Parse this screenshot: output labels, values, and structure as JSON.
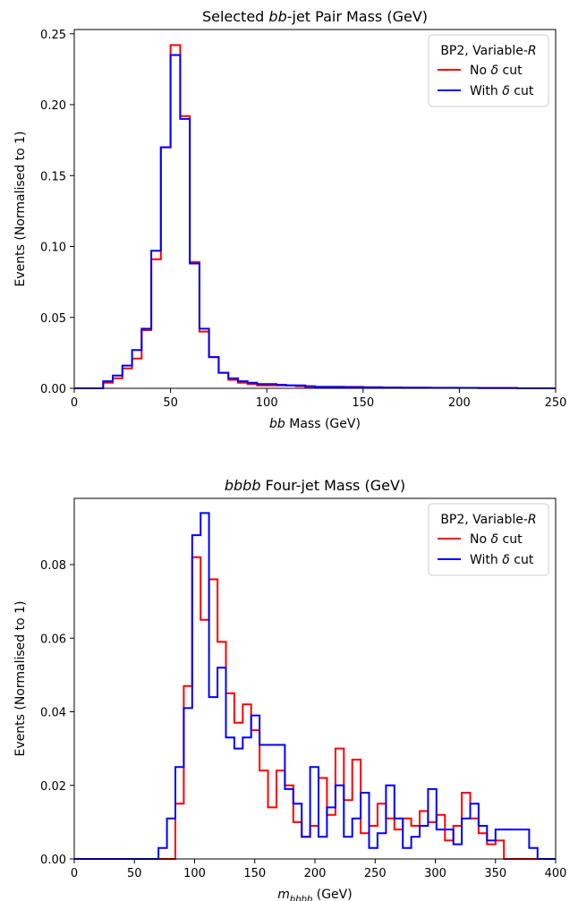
{
  "chart_data": [
    {
      "type": "line",
      "title_parts": [
        "Selected ",
        "bb",
        "-jet Pair Mass (GeV)"
      ],
      "xlabel_parts": [
        "bb",
        " Mass (GeV)"
      ],
      "ylabel": "Events (Normalised to 1)",
      "xlim": [
        0,
        250
      ],
      "ylim": [
        0,
        0.253
      ],
      "xticks": [
        0,
        50,
        100,
        150,
        200,
        250
      ],
      "yticks": [
        0.0,
        0.05,
        0.1,
        0.15,
        0.2,
        0.25
      ],
      "ytick_labels": [
        "0.00",
        "0.05",
        "0.10",
        "0.15",
        "0.20",
        "0.25"
      ],
      "grid": false,
      "legend": {
        "placement": "top-right",
        "title_parts": [
          "BP2, Variable-",
          "R"
        ],
        "entries": [
          {
            "parts": [
              "No ",
              "δ",
              " cut"
            ],
            "color": "#ff0000"
          },
          {
            "parts": [
              "With ",
              "δ",
              " cut"
            ],
            "color": "#0000ff"
          }
        ]
      },
      "bin_edges": [
        0,
        5,
        10,
        15,
        20,
        25,
        30,
        35,
        40,
        45,
        50,
        55,
        60,
        65,
        70,
        75,
        80,
        85,
        90,
        95,
        100,
        105,
        110,
        115,
        120,
        125,
        130,
        135,
        140,
        145,
        150,
        155,
        160,
        165,
        170,
        175,
        180,
        185,
        190,
        195,
        200,
        205,
        210,
        215,
        220,
        225,
        230,
        235,
        240,
        245,
        250
      ],
      "series": [
        {
          "name": "No δ cut",
          "color": "#ff0000",
          "values": [
            0,
            0,
            0,
            0.004,
            0.007,
            0.014,
            0.021,
            0.041,
            0.091,
            0.17,
            0.242,
            0.192,
            0.089,
            0.04,
            0.022,
            0.011,
            0.006,
            0.004,
            0.003,
            0.002,
            0.002,
            0.002,
            0.002,
            0.0015,
            0.001,
            0.001,
            0.001,
            0.001,
            0.001,
            0.001,
            0.0008,
            0.0008,
            0.0006,
            0.0006,
            0.0005,
            0.0005,
            0.0005,
            0.0004,
            0.0004,
            0.0004,
            0.0003,
            0.0003,
            0.0003,
            0.0003,
            0.0003,
            0.0003,
            0,
            0,
            0,
            0
          ]
        },
        {
          "name": "With δ cut",
          "color": "#0000ff",
          "values": [
            0,
            0,
            0,
            0.005,
            0.009,
            0.016,
            0.027,
            0.042,
            0.097,
            0.17,
            0.235,
            0.19,
            0.088,
            0.042,
            0.022,
            0.011,
            0.007,
            0.005,
            0.004,
            0.003,
            0.003,
            0.0025,
            0.002,
            0.002,
            0.0015,
            0.001,
            0.001,
            0.001,
            0.0008,
            0.0008,
            0.0006,
            0.0006,
            0.0005,
            0.0005,
            0.0004,
            0.0004,
            0.0004,
            0.0003,
            0.0003,
            0.0003,
            0.0003,
            0.0003,
            0.0002,
            0.0002,
            0.0002,
            0.0002,
            0,
            0,
            0,
            0
          ]
        }
      ]
    },
    {
      "type": "line",
      "title_parts": [
        "bbbb",
        " Four-jet Mass (GeV)"
      ],
      "xlabel_parts": [
        "m",
        "bbbb",
        " (GeV)"
      ],
      "ylabel": "Events (Normalised to 1)",
      "xlim": [
        0,
        400
      ],
      "ylim": [
        0,
        0.098
      ],
      "xticks": [
        0,
        50,
        100,
        150,
        200,
        250,
        300,
        350,
        400
      ],
      "yticks": [
        0.0,
        0.02,
        0.04,
        0.06,
        0.08
      ],
      "ytick_labels": [
        "0.00",
        "0.02",
        "0.04",
        "0.06",
        "0.08"
      ],
      "grid": false,
      "legend": {
        "placement": "top-right",
        "title_parts": [
          "BP2, Variable-",
          "R"
        ],
        "entries": [
          {
            "parts": [
              "No ",
              "δ",
              " cut"
            ],
            "color": "#ff0000"
          },
          {
            "parts": [
              "With ",
              "δ",
              " cut"
            ],
            "color": "#0000ff"
          }
        ]
      },
      "bin_edges": [
        0,
        70,
        77,
        84,
        91,
        98,
        105,
        112,
        119,
        126,
        133,
        140,
        147,
        154,
        161,
        168,
        175,
        182,
        189,
        196,
        203,
        210,
        217,
        224,
        231,
        238,
        245,
        252,
        259,
        266,
        273,
        280,
        287,
        294,
        301,
        308,
        315,
        322,
        329,
        336,
        343,
        350,
        357,
        364,
        371,
        378,
        385,
        392,
        400
      ],
      "series": [
        {
          "name": "No δ cut",
          "color": "#ff0000",
          "values": [
            0,
            0,
            0,
            0.015,
            0.047,
            0.082,
            0.065,
            0.076,
            0.059,
            0.045,
            0.037,
            0.042,
            0.035,
            0.024,
            0.014,
            0.024,
            0.02,
            0.01,
            0.006,
            0.009,
            0.022,
            0.012,
            0.03,
            0.016,
            0.027,
            0.007,
            0.009,
            0.015,
            0.011,
            0.008,
            0.011,
            0.009,
            0.013,
            0.01,
            0.012,
            0.005,
            0.009,
            0.018,
            0.011,
            0.007,
            0.004,
            0.005,
            0,
            0,
            0,
            0,
            0
          ]
        },
        {
          "name": "With δ cut",
          "color": "#0000ff",
          "values": [
            0,
            0.003,
            0.011,
            0.025,
            0.041,
            0.088,
            0.094,
            0.044,
            0.052,
            0.033,
            0.03,
            0.033,
            0.039,
            0.031,
            0.031,
            0.031,
            0.019,
            0.015,
            0.006,
            0.025,
            0.006,
            0.014,
            0.02,
            0.006,
            0.011,
            0.018,
            0.003,
            0.007,
            0.02,
            0.011,
            0.003,
            0.006,
            0.009,
            0.019,
            0.008,
            0.008,
            0.004,
            0.011,
            0.015,
            0.009,
            0.005,
            0.008,
            0.008,
            0.008,
            0.008,
            0.003,
            0
          ]
        }
      ]
    }
  ]
}
